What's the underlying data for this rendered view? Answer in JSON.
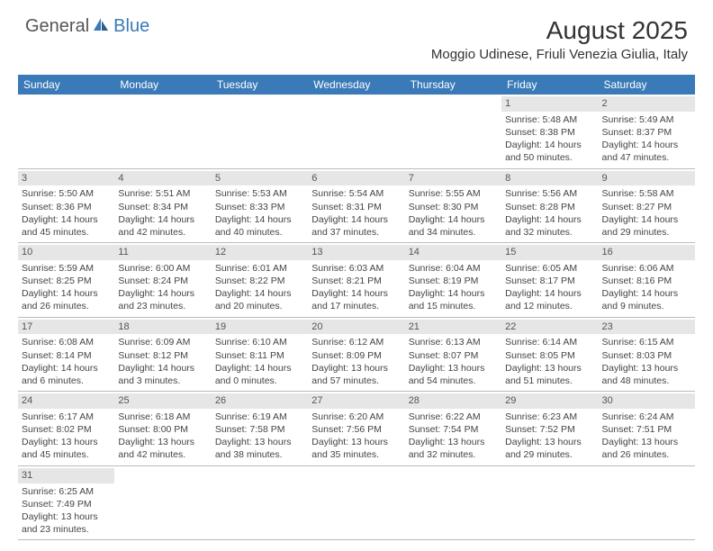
{
  "logo": {
    "part1": "General",
    "part2": "Blue",
    "icon_color": "#3a7ab8"
  },
  "title": "August 2025",
  "location": "Moggio Udinese, Friuli Venezia Giulia, Italy",
  "colors": {
    "header_bg": "#3a7ab8",
    "header_text": "#ffffff",
    "daynum_bg": "#e6e6e6",
    "border": "#bbbbbb",
    "text": "#444444"
  },
  "weekdays": [
    "Sunday",
    "Monday",
    "Tuesday",
    "Wednesday",
    "Thursday",
    "Friday",
    "Saturday"
  ],
  "weeks": [
    [
      null,
      null,
      null,
      null,
      null,
      {
        "day": "1",
        "sunrise": "Sunrise: 5:48 AM",
        "sunset": "Sunset: 8:38 PM",
        "day1": "Daylight: 14 hours",
        "day2": "and 50 minutes."
      },
      {
        "day": "2",
        "sunrise": "Sunrise: 5:49 AM",
        "sunset": "Sunset: 8:37 PM",
        "day1": "Daylight: 14 hours",
        "day2": "and 47 minutes."
      }
    ],
    [
      {
        "day": "3",
        "sunrise": "Sunrise: 5:50 AM",
        "sunset": "Sunset: 8:36 PM",
        "day1": "Daylight: 14 hours",
        "day2": "and 45 minutes."
      },
      {
        "day": "4",
        "sunrise": "Sunrise: 5:51 AM",
        "sunset": "Sunset: 8:34 PM",
        "day1": "Daylight: 14 hours",
        "day2": "and 42 minutes."
      },
      {
        "day": "5",
        "sunrise": "Sunrise: 5:53 AM",
        "sunset": "Sunset: 8:33 PM",
        "day1": "Daylight: 14 hours",
        "day2": "and 40 minutes."
      },
      {
        "day": "6",
        "sunrise": "Sunrise: 5:54 AM",
        "sunset": "Sunset: 8:31 PM",
        "day1": "Daylight: 14 hours",
        "day2": "and 37 minutes."
      },
      {
        "day": "7",
        "sunrise": "Sunrise: 5:55 AM",
        "sunset": "Sunset: 8:30 PM",
        "day1": "Daylight: 14 hours",
        "day2": "and 34 minutes."
      },
      {
        "day": "8",
        "sunrise": "Sunrise: 5:56 AM",
        "sunset": "Sunset: 8:28 PM",
        "day1": "Daylight: 14 hours",
        "day2": "and 32 minutes."
      },
      {
        "day": "9",
        "sunrise": "Sunrise: 5:58 AM",
        "sunset": "Sunset: 8:27 PM",
        "day1": "Daylight: 14 hours",
        "day2": "and 29 minutes."
      }
    ],
    [
      {
        "day": "10",
        "sunrise": "Sunrise: 5:59 AM",
        "sunset": "Sunset: 8:25 PM",
        "day1": "Daylight: 14 hours",
        "day2": "and 26 minutes."
      },
      {
        "day": "11",
        "sunrise": "Sunrise: 6:00 AM",
        "sunset": "Sunset: 8:24 PM",
        "day1": "Daylight: 14 hours",
        "day2": "and 23 minutes."
      },
      {
        "day": "12",
        "sunrise": "Sunrise: 6:01 AM",
        "sunset": "Sunset: 8:22 PM",
        "day1": "Daylight: 14 hours",
        "day2": "and 20 minutes."
      },
      {
        "day": "13",
        "sunrise": "Sunrise: 6:03 AM",
        "sunset": "Sunset: 8:21 PM",
        "day1": "Daylight: 14 hours",
        "day2": "and 17 minutes."
      },
      {
        "day": "14",
        "sunrise": "Sunrise: 6:04 AM",
        "sunset": "Sunset: 8:19 PM",
        "day1": "Daylight: 14 hours",
        "day2": "and 15 minutes."
      },
      {
        "day": "15",
        "sunrise": "Sunrise: 6:05 AM",
        "sunset": "Sunset: 8:17 PM",
        "day1": "Daylight: 14 hours",
        "day2": "and 12 minutes."
      },
      {
        "day": "16",
        "sunrise": "Sunrise: 6:06 AM",
        "sunset": "Sunset: 8:16 PM",
        "day1": "Daylight: 14 hours",
        "day2": "and 9 minutes."
      }
    ],
    [
      {
        "day": "17",
        "sunrise": "Sunrise: 6:08 AM",
        "sunset": "Sunset: 8:14 PM",
        "day1": "Daylight: 14 hours",
        "day2": "and 6 minutes."
      },
      {
        "day": "18",
        "sunrise": "Sunrise: 6:09 AM",
        "sunset": "Sunset: 8:12 PM",
        "day1": "Daylight: 14 hours",
        "day2": "and 3 minutes."
      },
      {
        "day": "19",
        "sunrise": "Sunrise: 6:10 AM",
        "sunset": "Sunset: 8:11 PM",
        "day1": "Daylight: 14 hours",
        "day2": "and 0 minutes."
      },
      {
        "day": "20",
        "sunrise": "Sunrise: 6:12 AM",
        "sunset": "Sunset: 8:09 PM",
        "day1": "Daylight: 13 hours",
        "day2": "and 57 minutes."
      },
      {
        "day": "21",
        "sunrise": "Sunrise: 6:13 AM",
        "sunset": "Sunset: 8:07 PM",
        "day1": "Daylight: 13 hours",
        "day2": "and 54 minutes."
      },
      {
        "day": "22",
        "sunrise": "Sunrise: 6:14 AM",
        "sunset": "Sunset: 8:05 PM",
        "day1": "Daylight: 13 hours",
        "day2": "and 51 minutes."
      },
      {
        "day": "23",
        "sunrise": "Sunrise: 6:15 AM",
        "sunset": "Sunset: 8:03 PM",
        "day1": "Daylight: 13 hours",
        "day2": "and 48 minutes."
      }
    ],
    [
      {
        "day": "24",
        "sunrise": "Sunrise: 6:17 AM",
        "sunset": "Sunset: 8:02 PM",
        "day1": "Daylight: 13 hours",
        "day2": "and 45 minutes."
      },
      {
        "day": "25",
        "sunrise": "Sunrise: 6:18 AM",
        "sunset": "Sunset: 8:00 PM",
        "day1": "Daylight: 13 hours",
        "day2": "and 42 minutes."
      },
      {
        "day": "26",
        "sunrise": "Sunrise: 6:19 AM",
        "sunset": "Sunset: 7:58 PM",
        "day1": "Daylight: 13 hours",
        "day2": "and 38 minutes."
      },
      {
        "day": "27",
        "sunrise": "Sunrise: 6:20 AM",
        "sunset": "Sunset: 7:56 PM",
        "day1": "Daylight: 13 hours",
        "day2": "and 35 minutes."
      },
      {
        "day": "28",
        "sunrise": "Sunrise: 6:22 AM",
        "sunset": "Sunset: 7:54 PM",
        "day1": "Daylight: 13 hours",
        "day2": "and 32 minutes."
      },
      {
        "day": "29",
        "sunrise": "Sunrise: 6:23 AM",
        "sunset": "Sunset: 7:52 PM",
        "day1": "Daylight: 13 hours",
        "day2": "and 29 minutes."
      },
      {
        "day": "30",
        "sunrise": "Sunrise: 6:24 AM",
        "sunset": "Sunset: 7:51 PM",
        "day1": "Daylight: 13 hours",
        "day2": "and 26 minutes."
      }
    ],
    [
      {
        "day": "31",
        "sunrise": "Sunrise: 6:25 AM",
        "sunset": "Sunset: 7:49 PM",
        "day1": "Daylight: 13 hours",
        "day2": "and 23 minutes."
      },
      null,
      null,
      null,
      null,
      null,
      null
    ]
  ]
}
